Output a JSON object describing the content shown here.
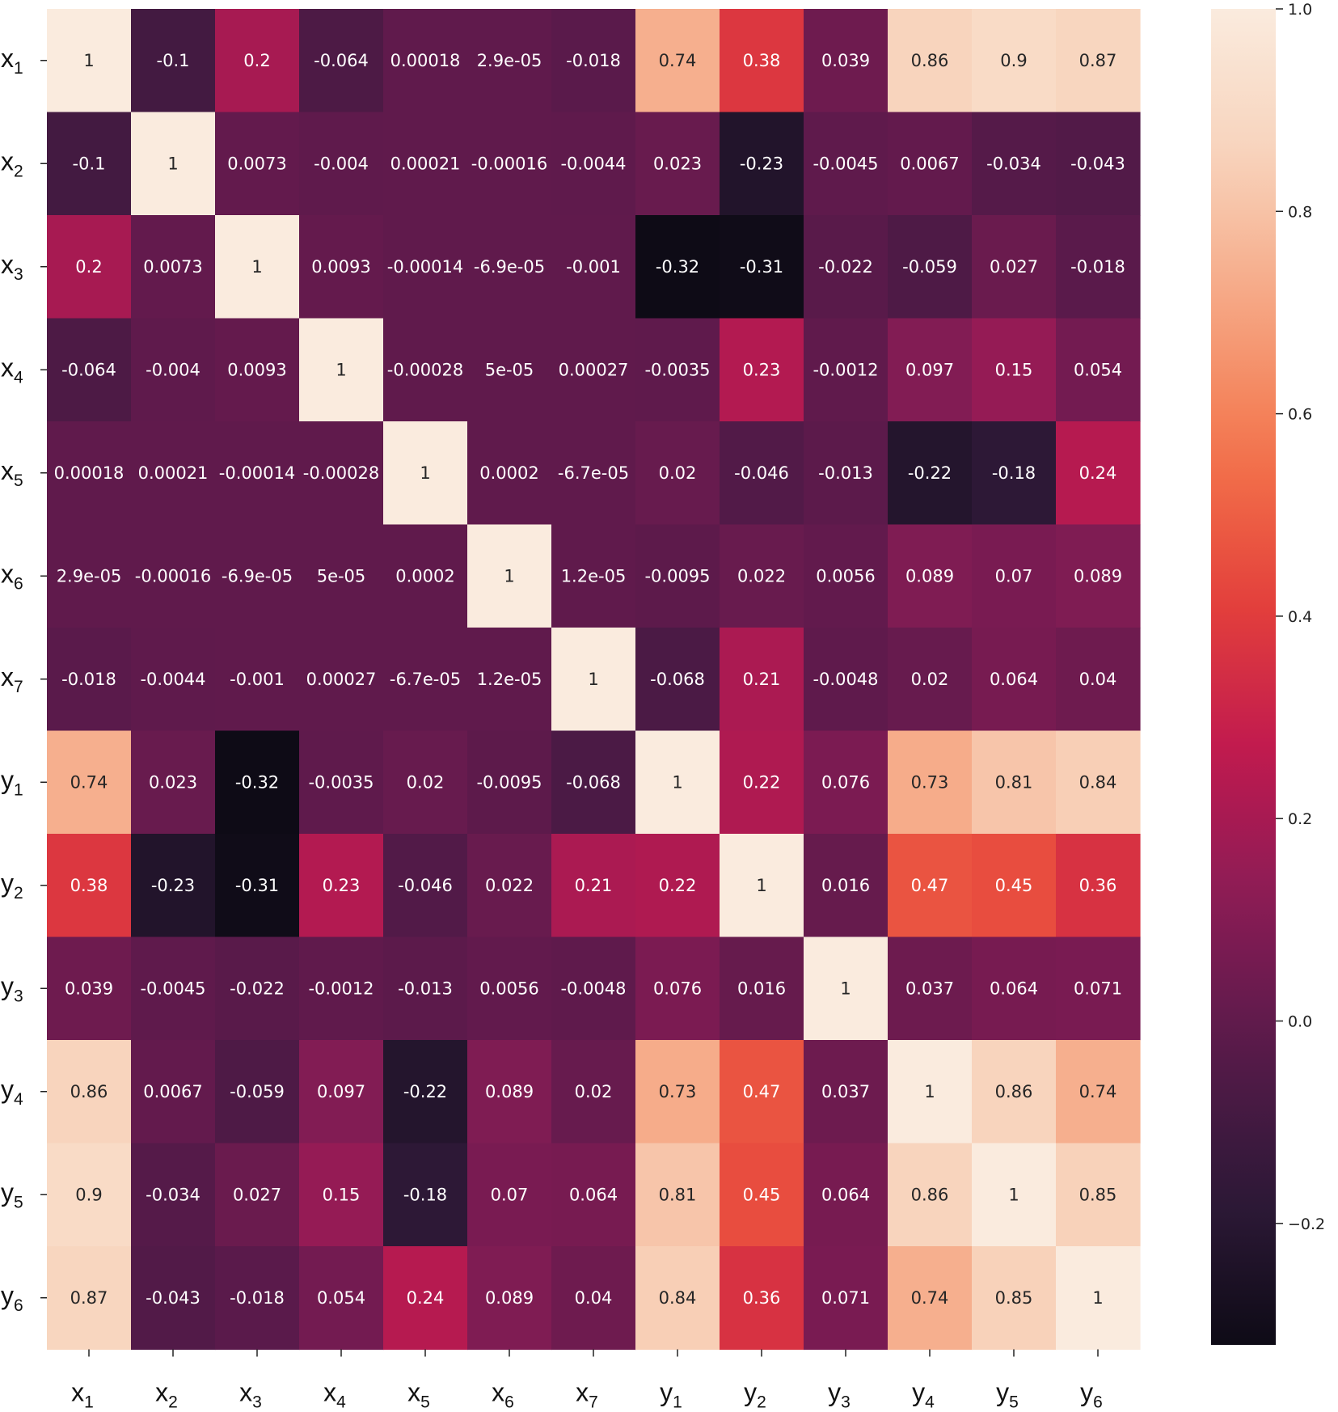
{
  "chart_data": {
    "type": "heatmap",
    "title": "",
    "xlabel": "",
    "ylabel": "",
    "rows": [
      {
        "base": "x",
        "sub": "1"
      },
      {
        "base": "x",
        "sub": "2"
      },
      {
        "base": "x",
        "sub": "3"
      },
      {
        "base": "x",
        "sub": "4"
      },
      {
        "base": "x",
        "sub": "5"
      },
      {
        "base": "x",
        "sub": "6"
      },
      {
        "base": "x",
        "sub": "7"
      },
      {
        "base": "y",
        "sub": "1"
      },
      {
        "base": "y",
        "sub": "2"
      },
      {
        "base": "y",
        "sub": "3"
      },
      {
        "base": "y",
        "sub": "4"
      },
      {
        "base": "y",
        "sub": "5"
      },
      {
        "base": "y",
        "sub": "6"
      }
    ],
    "columns": [
      {
        "base": "x",
        "sub": "1"
      },
      {
        "base": "x",
        "sub": "2"
      },
      {
        "base": "x",
        "sub": "3"
      },
      {
        "base": "x",
        "sub": "4"
      },
      {
        "base": "x",
        "sub": "5"
      },
      {
        "base": "x",
        "sub": "6"
      },
      {
        "base": "x",
        "sub": "7"
      },
      {
        "base": "y",
        "sub": "1"
      },
      {
        "base": "y",
        "sub": "2"
      },
      {
        "base": "y",
        "sub": "3"
      },
      {
        "base": "y",
        "sub": "4"
      },
      {
        "base": "y",
        "sub": "5"
      },
      {
        "base": "y",
        "sub": "6"
      }
    ],
    "values": [
      [
        1,
        -0.1,
        0.2,
        -0.064,
        0.00018,
        2.9e-05,
        -0.018,
        0.74,
        0.38,
        0.039,
        0.86,
        0.9,
        0.87
      ],
      [
        -0.1,
        1,
        0.0073,
        -0.004,
        0.00021,
        -0.00016,
        -0.0044,
        0.023,
        -0.23,
        -0.0045,
        0.0067,
        -0.034,
        -0.043
      ],
      [
        0.2,
        0.0073,
        1,
        0.0093,
        -0.00014,
        -6.9e-05,
        -0.001,
        -0.32,
        -0.31,
        -0.022,
        -0.059,
        0.027,
        -0.018
      ],
      [
        -0.064,
        -0.004,
        0.0093,
        1,
        -0.00028,
        5e-05,
        0.00027,
        -0.0035,
        0.23,
        -0.0012,
        0.097,
        0.15,
        0.054
      ],
      [
        0.00018,
        0.00021,
        -0.00014,
        -0.00028,
        1,
        0.0002,
        -6.7e-05,
        0.02,
        -0.046,
        -0.013,
        -0.22,
        -0.18,
        0.24
      ],
      [
        2.9e-05,
        -0.00016,
        -6.9e-05,
        5e-05,
        0.0002,
        1,
        1.2e-05,
        -0.0095,
        0.022,
        0.0056,
        0.089,
        0.07,
        0.089
      ],
      [
        -0.018,
        -0.0044,
        -0.001,
        0.00027,
        -6.7e-05,
        1.2e-05,
        1,
        -0.068,
        0.21,
        -0.0048,
        0.02,
        0.064,
        0.04
      ],
      [
        0.74,
        0.023,
        -0.32,
        -0.0035,
        0.02,
        -0.0095,
        -0.068,
        1,
        0.22,
        0.076,
        0.73,
        0.81,
        0.84
      ],
      [
        0.38,
        -0.23,
        -0.31,
        0.23,
        -0.046,
        0.022,
        0.21,
        0.22,
        1,
        0.016,
        0.47,
        0.45,
        0.36
      ],
      [
        0.039,
        -0.0045,
        -0.022,
        -0.0012,
        -0.013,
        0.0056,
        -0.0048,
        0.076,
        0.016,
        1,
        0.037,
        0.064,
        0.071
      ],
      [
        0.86,
        0.0067,
        -0.059,
        0.097,
        -0.22,
        0.089,
        0.02,
        0.73,
        0.47,
        0.037,
        1,
        0.86,
        0.74
      ],
      [
        0.9,
        -0.034,
        0.027,
        0.15,
        -0.18,
        0.07,
        0.064,
        0.81,
        0.45,
        0.064,
        0.86,
        1,
        0.85
      ],
      [
        0.87,
        -0.043,
        -0.018,
        0.054,
        0.24,
        0.089,
        0.04,
        0.84,
        0.36,
        0.071,
        0.74,
        0.85,
        1
      ]
    ],
    "labels": [
      [
        "1",
        "-0.1",
        "0.2",
        "-0.064",
        "0.00018",
        "2.9e-05",
        "-0.018",
        "0.74",
        "0.38",
        "0.039",
        "0.86",
        "0.9",
        "0.87"
      ],
      [
        "-0.1",
        "1",
        "0.0073",
        "-0.004",
        "0.00021",
        "-0.00016",
        "-0.0044",
        "0.023",
        "-0.23",
        "-0.0045",
        "0.0067",
        "-0.034",
        "-0.043"
      ],
      [
        "0.2",
        "0.0073",
        "1",
        "0.0093",
        "-0.00014",
        "-6.9e-05",
        "-0.001",
        "-0.32",
        "-0.31",
        "-0.022",
        "-0.059",
        "0.027",
        "-0.018"
      ],
      [
        "-0.064",
        "-0.004",
        "0.0093",
        "1",
        "-0.00028",
        "5e-05",
        "0.00027",
        "-0.0035",
        "0.23",
        "-0.0012",
        "0.097",
        "0.15",
        "0.054"
      ],
      [
        "0.00018",
        "0.00021",
        "-0.00014",
        "-0.00028",
        "1",
        "0.0002",
        "-6.7e-05",
        "0.02",
        "-0.046",
        "-0.013",
        "-0.22",
        "-0.18",
        "0.24"
      ],
      [
        "2.9e-05",
        "-0.00016",
        "-6.9e-05",
        "5e-05",
        "0.0002",
        "1",
        "1.2e-05",
        "-0.0095",
        "0.022",
        "0.0056",
        "0.089",
        "0.07",
        "0.089"
      ],
      [
        "-0.018",
        "-0.0044",
        "-0.001",
        "0.00027",
        "-6.7e-05",
        "1.2e-05",
        "1",
        "-0.068",
        "0.21",
        "-0.0048",
        "0.02",
        "0.064",
        "0.04"
      ],
      [
        "0.74",
        "0.023",
        "-0.32",
        "-0.0035",
        "0.02",
        "-0.0095",
        "-0.068",
        "1",
        "0.22",
        "0.076",
        "0.73",
        "0.81",
        "0.84"
      ],
      [
        "0.38",
        "-0.23",
        "-0.31",
        "0.23",
        "-0.046",
        "0.022",
        "0.21",
        "0.22",
        "1",
        "0.016",
        "0.47",
        "0.45",
        "0.36"
      ],
      [
        "0.039",
        "-0.0045",
        "-0.022",
        "-0.0012",
        "-0.013",
        "0.0056",
        "-0.0048",
        "0.076",
        "0.016",
        "1",
        "0.037",
        "0.064",
        "0.071"
      ],
      [
        "0.86",
        "0.0067",
        "-0.059",
        "0.097",
        "-0.22",
        "0.089",
        "0.02",
        "0.73",
        "0.47",
        "0.037",
        "1",
        "0.86",
        "0.74"
      ],
      [
        "0.9",
        "-0.034",
        "0.027",
        "0.15",
        "-0.18",
        "0.07",
        "0.064",
        "0.81",
        "0.45",
        "0.064",
        "0.86",
        "1",
        "0.85"
      ],
      [
        "0.87",
        "-0.043",
        "-0.018",
        "0.054",
        "0.24",
        "0.089",
        "0.04",
        "0.84",
        "0.36",
        "0.071",
        "0.74",
        "0.85",
        "1"
      ]
    ],
    "colormap": "rocket",
    "vmin": -0.32,
    "vmax": 1.0,
    "colorbar": {
      "ticks": [
        1.0,
        0.8,
        0.6,
        0.4,
        0.2,
        0.0,
        -0.2
      ],
      "tick_labels": [
        "1.0",
        "0.8",
        "0.6",
        "0.4",
        "0.2",
        "0.0",
        "−0.2"
      ],
      "placement": "right"
    }
  },
  "colors": {
    "stops": [
      "#0e0b16",
      "#2e1938",
      "#571a4a",
      "#8a1c56",
      "#c0194f",
      "#e4403b",
      "#f3744b",
      "#f6a581",
      "#f8d3bb",
      "#faebde"
    ],
    "text_light": "#ffffff",
    "text_dark": "#262626"
  }
}
